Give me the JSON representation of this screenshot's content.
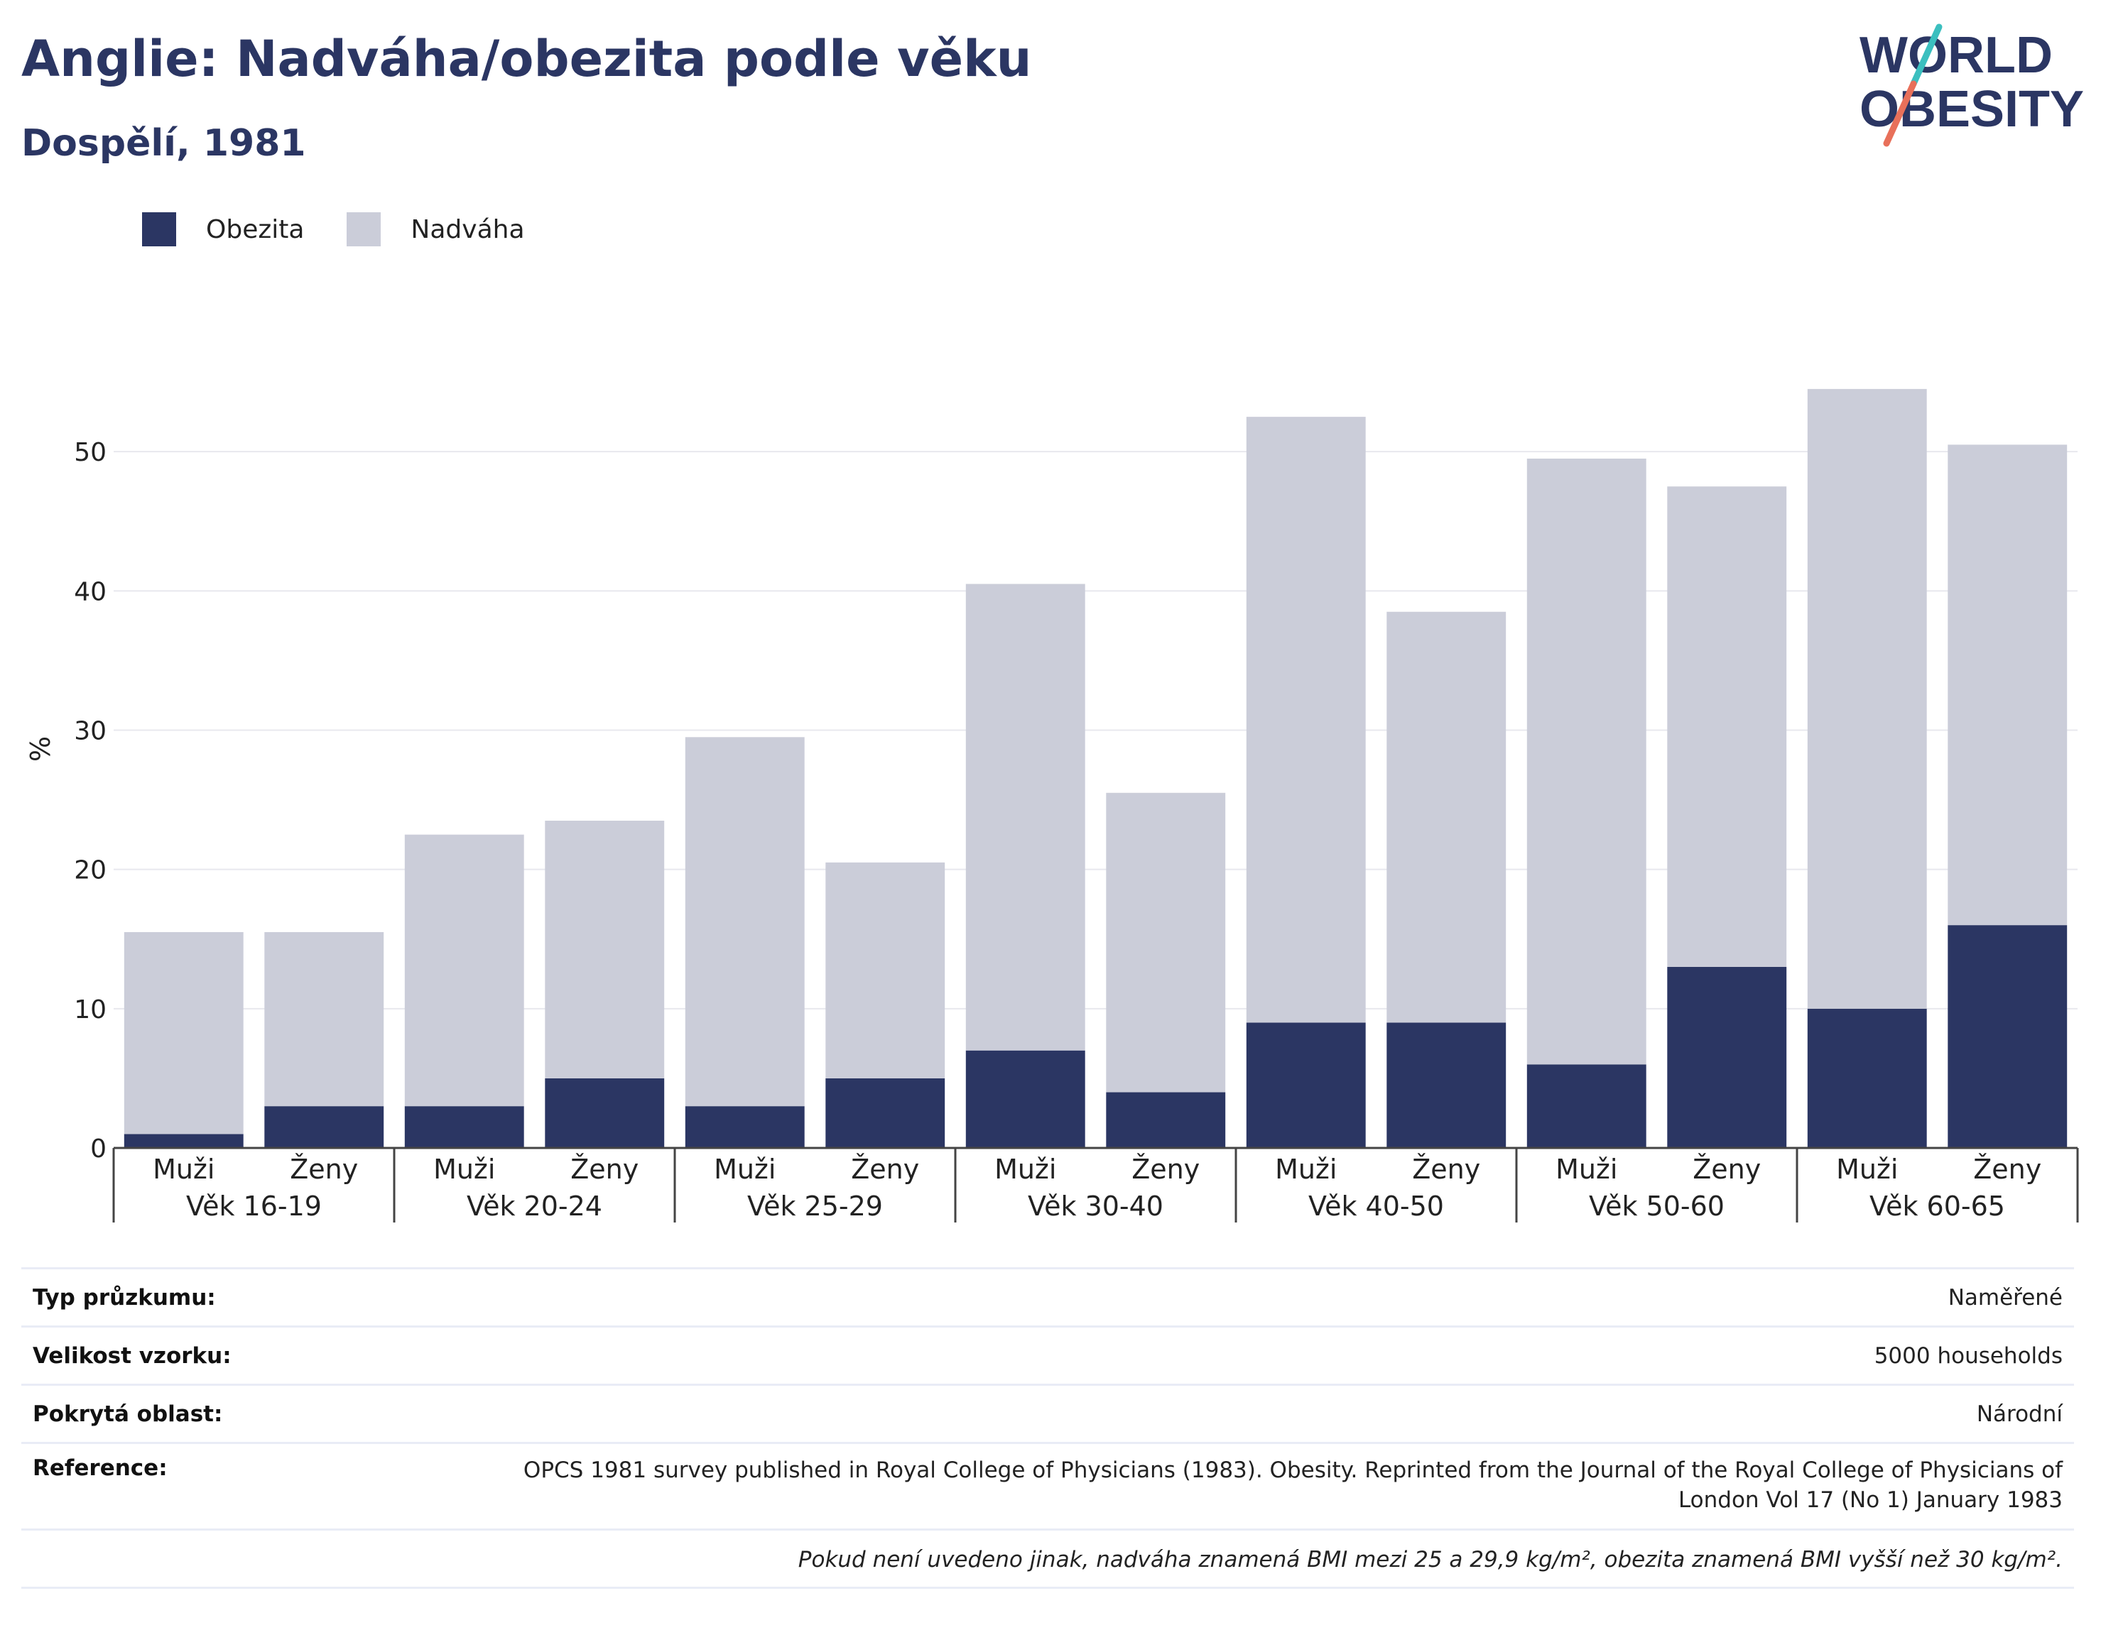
{
  "header": {
    "title": "Anglie: Nadváha/obezita podle věku",
    "subtitle": "Dospělí, 1981"
  },
  "logo": {
    "line1": "WORLD",
    "line2": "OBESITY",
    "colors": {
      "text": "#2b3663",
      "slash_top": "#3bbfbf",
      "slash_bottom": "#e8705a"
    }
  },
  "legend": [
    {
      "label": "Obezita",
      "color": "#2b3663"
    },
    {
      "label": "Nadváha",
      "color": "#cbcdd9"
    }
  ],
  "chart_data": {
    "type": "bar",
    "stacked": true,
    "groups": [
      "Věk 16-19",
      "Věk 20-24",
      "Věk 25-29",
      "Věk 30-40",
      "Věk 40-50",
      "Věk 50-60",
      "Věk 60-65"
    ],
    "subcategories": [
      "Muži",
      "Ženy"
    ],
    "series": [
      {
        "name": "Obezita",
        "color": "#2b3663",
        "values": [
          1,
          3,
          3,
          5,
          3,
          5,
          7,
          4,
          9,
          9,
          6,
          13,
          10,
          16
        ]
      },
      {
        "name": "Nadváha",
        "color": "#cbcdd9",
        "values": [
          14.5,
          12.5,
          19.5,
          18.5,
          26.5,
          15.5,
          33.5,
          21.5,
          43.5,
          29.5,
          43.5,
          34.5,
          44.5,
          34.5
        ]
      }
    ],
    "ylabel": "%",
    "ylim": [
      0,
      60
    ],
    "yticks": [
      0,
      10,
      20,
      30,
      40,
      50
    ],
    "grid": true,
    "legend_position": "top-left"
  },
  "info": {
    "rows": [
      {
        "label": "Typ průzkumu:",
        "value": "Naměřené"
      },
      {
        "label": "Velikost vzorku:",
        "value": "5000 households"
      },
      {
        "label": "Pokrytá oblast:",
        "value": "Národní"
      },
      {
        "label": "Reference:",
        "value": "OPCS 1981 survey published in Royal College of Physicians (1983). Obesity. Reprinted from the Journal of the Royal College of Physicians of London Vol 17 (No 1) January 1983"
      }
    ],
    "note": "Pokud není uvedeno jinak, nadváha znamená BMI mezi 25 a 29,9 kg/m², obezita znamená BMI vyšší než 30 kg/m²."
  }
}
